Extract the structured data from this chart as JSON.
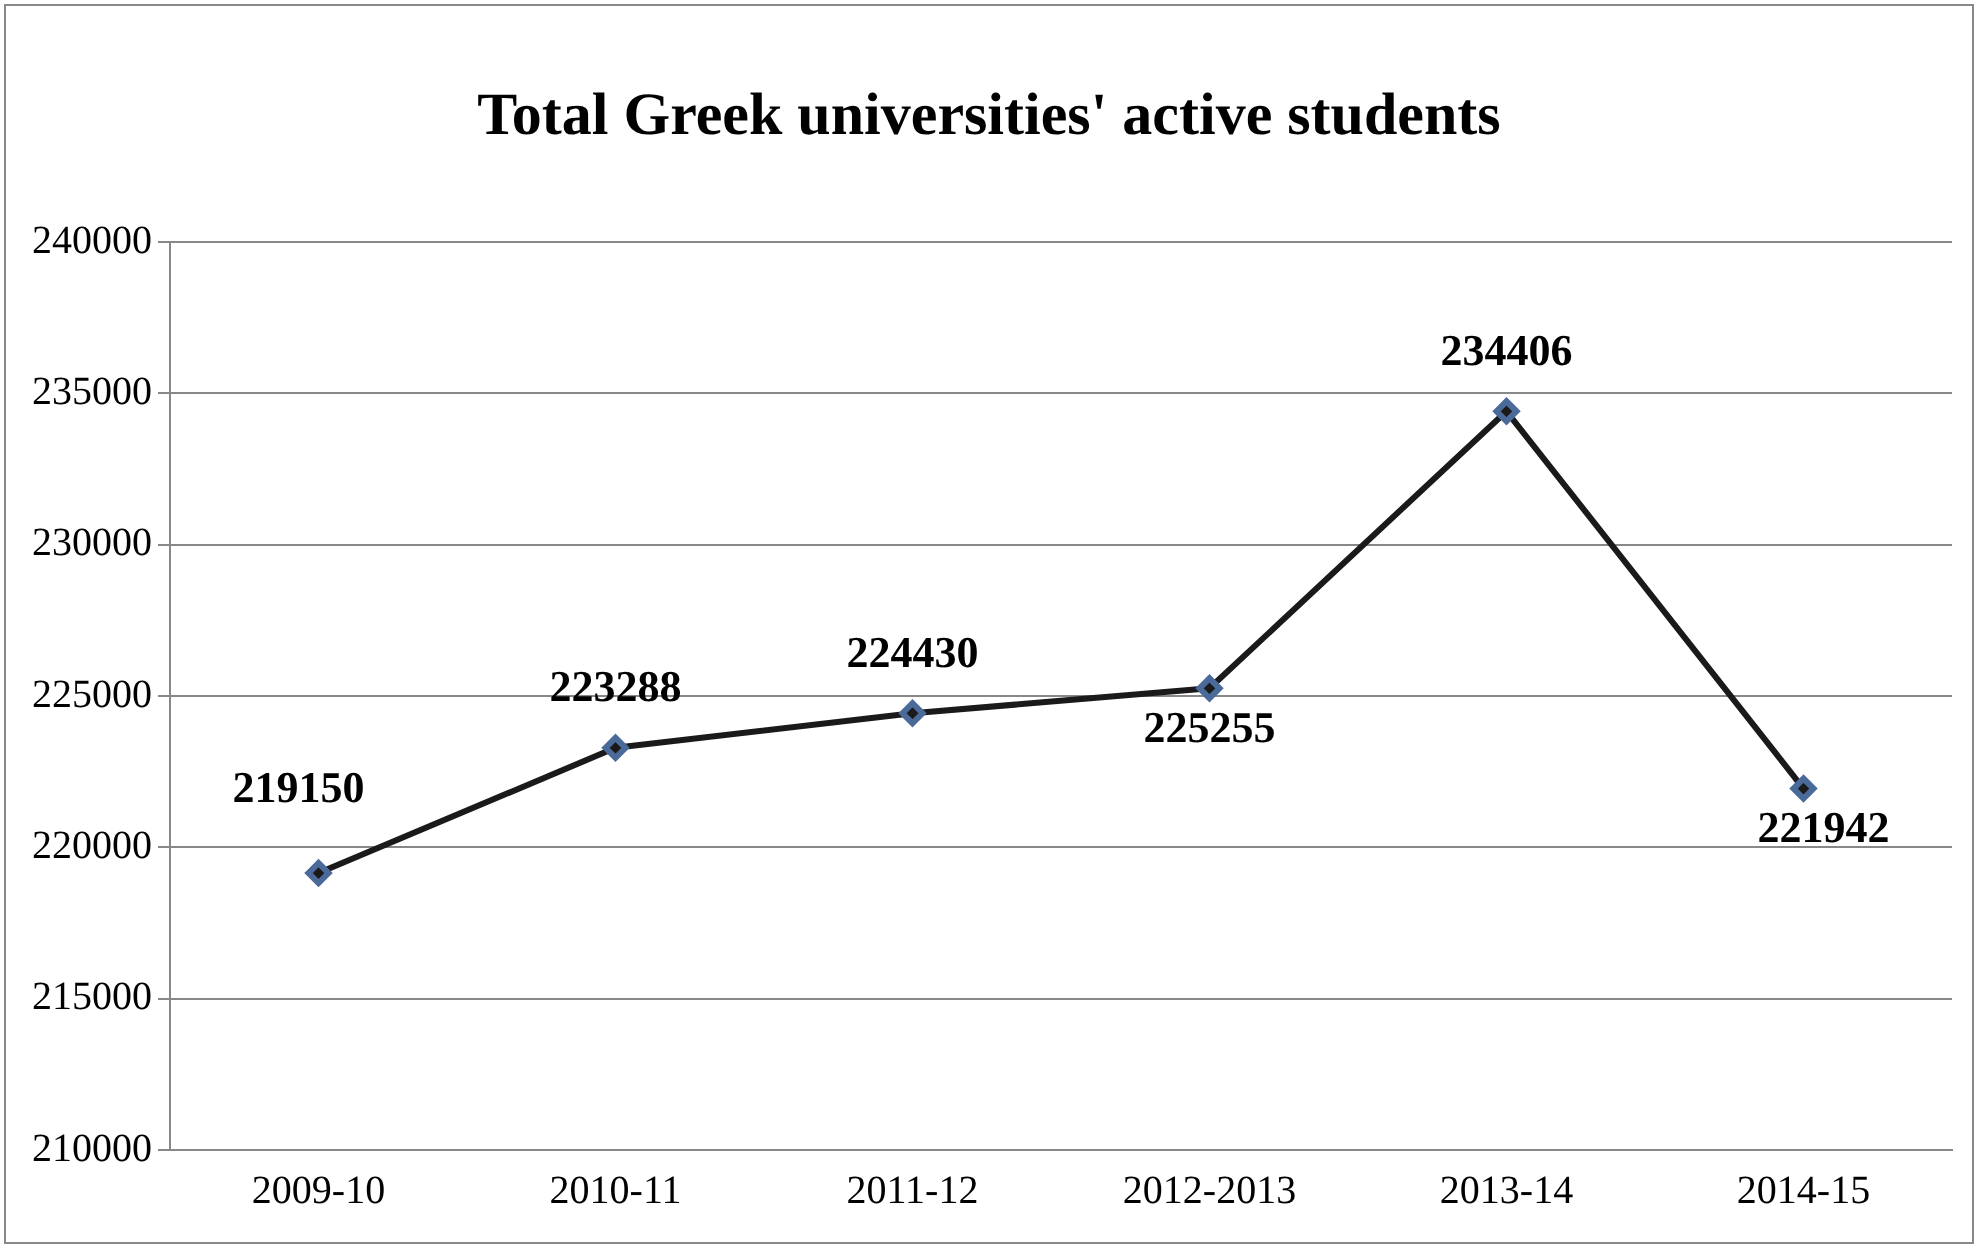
{
  "chart_data": {
    "type": "line",
    "title": "Total Greek universities' active students",
    "categories": [
      "2009-10",
      "2010-11",
      "2011-12",
      "2012-2013",
      "2013-14",
      "2014-15"
    ],
    "values": [
      219150,
      223288,
      224430,
      225255,
      234406,
      221942
    ],
    "color": "#1a1a1a",
    "ylim": [
      210000,
      240000
    ],
    "yticks": [
      210000,
      215000,
      220000,
      225000,
      230000,
      235000,
      240000
    ],
    "grid": "y",
    "legend": false,
    "marker": "diamond",
    "line_style": "solid",
    "data_labels": true
  }
}
